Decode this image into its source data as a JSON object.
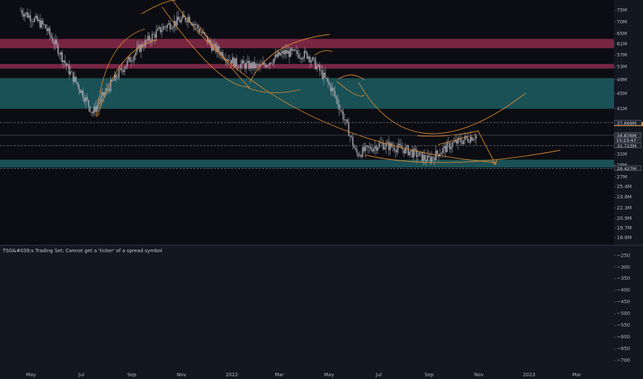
{
  "chart_data": [
    {
      "type": "candlestick",
      "panel": "price",
      "y_axis": {
        "scale": "log",
        "tick_labels": [
          "75M",
          "70M",
          "65M",
          "61M",
          "57M",
          "53M",
          "49M",
          "45M",
          "41M",
          "37.669M",
          "34.876M",
          "15:23:47",
          "32.723M",
          "31M",
          "29M",
          "27M",
          "25.4M",
          "23.8M",
          "22.3M",
          "20.9M",
          "19.7M",
          "18.6M"
        ],
        "ticks": [
          75,
          70,
          65,
          61,
          57,
          53,
          49,
          45,
          41,
          31,
          29,
          27,
          25.4,
          23.8,
          22.3,
          20.9,
          19.7,
          18.6
        ],
        "range": [
          17.8,
          80
        ]
      },
      "x_axis": {
        "labels": [
          "May",
          "Jul",
          "Sep",
          "Nov",
          "2022",
          "Mar",
          "May",
          "Jul",
          "Sep",
          "Nov",
          "2023",
          "Mar"
        ]
      },
      "price_levels": [
        {
          "label": "37.669M",
          "value": 37.669,
          "style": "dashed"
        },
        {
          "label": "34.876M",
          "value": 34.876,
          "style": "current",
          "countdown": "15:23:47"
        },
        {
          "label": "32.723M",
          "value": 32.723,
          "style": "dashed"
        },
        {
          "label": "28.427M",
          "value": 28.427,
          "style": "dashed"
        }
      ],
      "zones": [
        {
          "color": "#8b2c4b",
          "from": 59.5,
          "to": 63
        },
        {
          "color": "#8b2c4b",
          "from": 52.5,
          "to": 54.0
        },
        {
          "color": "#1d5e63",
          "from": 41.0,
          "to": 49.5
        },
        {
          "color": "#1d5e63",
          "from": 28.6,
          "to": 30.0
        }
      ],
      "approx_closes": [
        {
          "x": "2021-04",
          "y": 75
        },
        {
          "x": "2021-05",
          "y": 68
        },
        {
          "x": "2021-06",
          "y": 52
        },
        {
          "x": "2021-07",
          "y": 40
        },
        {
          "x": "2021-08",
          "y": 50
        },
        {
          "x": "2021-09",
          "y": 60
        },
        {
          "x": "2021-10",
          "y": 68
        },
        {
          "x": "2021-11",
          "y": 72
        },
        {
          "x": "2021-12",
          "y": 60
        },
        {
          "x": "2022-01",
          "y": 54
        },
        {
          "x": "2022-02",
          "y": 53
        },
        {
          "x": "2022-03",
          "y": 58
        },
        {
          "x": "2022-04",
          "y": 57
        },
        {
          "x": "2022-05",
          "y": 46
        },
        {
          "x": "2022-06",
          "y": 31
        },
        {
          "x": "2022-07",
          "y": 33
        },
        {
          "x": "2022-08",
          "y": 32
        },
        {
          "x": "2022-09",
          "y": 30
        },
        {
          "x": "2022-10",
          "y": 33
        },
        {
          "x": "2022-11",
          "y": 34.876
        }
      ],
      "colors": {
        "candles": "#a8a8b0",
        "drawings": "#e08a2e",
        "zone_red": "#8b2c4b",
        "zone_teal": "#1d5e63",
        "current_tag": "#e58a2a"
      }
    },
    {
      "type": "line",
      "panel": "indicator",
      "title": "TSG&#039;s Trading Set: Cannot get a 'ticker' of a spread symbol",
      "y_axis": {
        "tick_labels": [
          "−250",
          "−300",
          "−350",
          "−400",
          "−450",
          "−500",
          "−550",
          "−600",
          "−650",
          "−700"
        ],
        "ticks": [
          -250,
          -300,
          -350,
          -400,
          -450,
          -500,
          -550,
          -600,
          -650,
          -700
        ],
        "range": [
          -735,
          -210
        ]
      }
    }
  ]
}
